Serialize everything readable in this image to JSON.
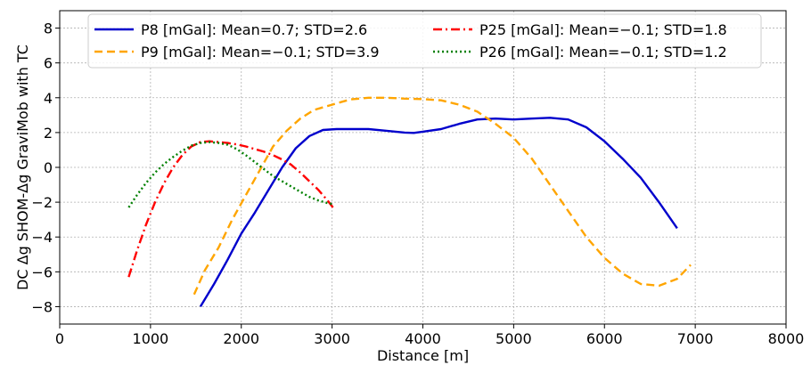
{
  "chart_data": {
    "type": "line",
    "xlabel": "Distance [m]",
    "ylabel": "DC Δg SHOM-Δg GraviMob with TC",
    "xlim": [
      0,
      8000
    ],
    "ylim": [
      -9,
      9
    ],
    "xticks": [
      0,
      1000,
      2000,
      3000,
      4000,
      5000,
      6000,
      7000,
      8000
    ],
    "yticks": [
      -8,
      -6,
      -4,
      -2,
      0,
      2,
      4,
      6,
      8
    ],
    "grid": true,
    "legend_position": "top",
    "series": [
      {
        "name": "P8 [mGal]: Mean=0.7; STD=2.6",
        "color": "#0000cc",
        "style": "solid",
        "x": [
          1550,
          1700,
          1850,
          2000,
          2150,
          2300,
          2450,
          2600,
          2750,
          2900,
          3050,
          3200,
          3400,
          3600,
          3800,
          3900,
          4000,
          4200,
          4400,
          4600,
          4800,
          5000,
          5200,
          5400,
          5600,
          5800,
          6000,
          6200,
          6400,
          6600,
          6800
        ],
        "y": [
          -8.0,
          -6.7,
          -5.3,
          -3.8,
          -2.6,
          -1.3,
          0.0,
          1.1,
          1.8,
          2.15,
          2.2,
          2.2,
          2.2,
          2.1,
          2.0,
          1.98,
          2.05,
          2.2,
          2.5,
          2.75,
          2.8,
          2.75,
          2.8,
          2.85,
          2.75,
          2.3,
          1.5,
          0.5,
          -0.6,
          -2.0,
          -3.5
        ]
      },
      {
        "name": "P9 [mGal]: Mean=−0.1; STD=3.9",
        "color": "#ffa500",
        "style": "dashed",
        "x": [
          1480,
          1600,
          1750,
          1900,
          2050,
          2200,
          2350,
          2500,
          2650,
          2800,
          3000,
          3200,
          3400,
          3600,
          3800,
          4000,
          4200,
          4400,
          4600,
          4800,
          5000,
          5200,
          5400,
          5600,
          5800,
          6000,
          6200,
          6400,
          6600,
          6800,
          6950
        ],
        "y": [
          -7.3,
          -5.9,
          -4.6,
          -3.0,
          -1.6,
          -0.2,
          1.2,
          2.1,
          2.8,
          3.3,
          3.6,
          3.9,
          4.0,
          4.0,
          3.95,
          3.92,
          3.85,
          3.6,
          3.2,
          2.5,
          1.7,
          0.5,
          -1.0,
          -2.5,
          -4.0,
          -5.2,
          -6.1,
          -6.7,
          -6.8,
          -6.4,
          -5.6
        ]
      },
      {
        "name": "P25 [mGal]: Mean=−0.1; STD=1.8",
        "color": "#ff0000",
        "style": "dashdot",
        "x": [
          760,
          850,
          950,
          1050,
          1150,
          1250,
          1350,
          1450,
          1550,
          1650,
          1750,
          1850,
          1950,
          2050,
          2150,
          2250,
          2350,
          2450,
          2550,
          2650,
          2750,
          2850,
          2950,
          3010
        ],
        "y": [
          -6.3,
          -4.8,
          -3.3,
          -2.0,
          -0.9,
          0.0,
          0.7,
          1.2,
          1.45,
          1.5,
          1.45,
          1.4,
          1.32,
          1.2,
          1.05,
          0.9,
          0.7,
          0.45,
          0.15,
          -0.3,
          -0.8,
          -1.3,
          -1.9,
          -2.3
        ]
      },
      {
        "name": "P26 [mGal]: Mean=−0.1; STD=1.2",
        "color": "#008000",
        "style": "dotted",
        "x": [
          760,
          850,
          950,
          1050,
          1150,
          1250,
          1350,
          1450,
          1550,
          1650,
          1750,
          1850,
          1950,
          2050,
          2150,
          2250,
          2350,
          2450,
          2550,
          2650,
          2750,
          2850,
          2950,
          3000
        ],
        "y": [
          -2.3,
          -1.6,
          -0.9,
          -0.3,
          0.2,
          0.6,
          0.95,
          1.25,
          1.4,
          1.45,
          1.4,
          1.3,
          1.05,
          0.7,
          0.3,
          -0.1,
          -0.5,
          -0.8,
          -1.1,
          -1.4,
          -1.7,
          -1.9,
          -2.05,
          -2.1
        ]
      }
    ]
  }
}
